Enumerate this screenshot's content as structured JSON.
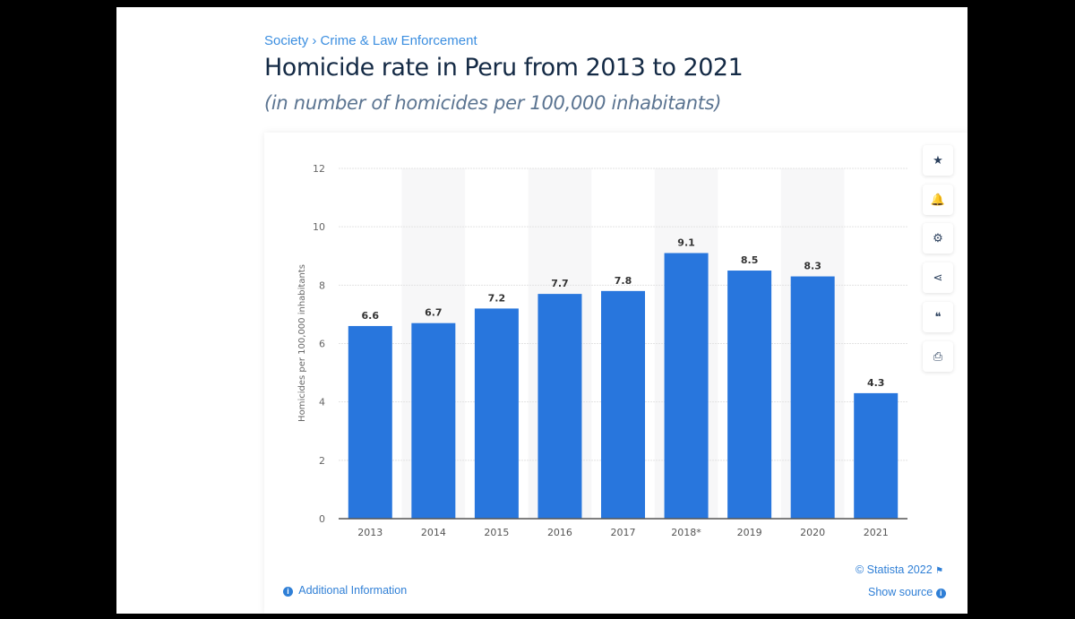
{
  "breadcrumb": {
    "items": [
      "Society",
      "Crime & Law Enforcement"
    ],
    "separator": "›"
  },
  "header": {
    "title": "Homicide rate in Peru from 2013 to 2021",
    "subtitle": "(in number of homicides per 100,000 inhabitants)"
  },
  "tools": [
    {
      "icon": "star-icon",
      "glyph": "★"
    },
    {
      "icon": "bell-icon",
      "glyph": "🔔"
    },
    {
      "icon": "gear-icon",
      "glyph": "⚙"
    },
    {
      "icon": "share-icon",
      "glyph": "⋖"
    },
    {
      "icon": "quote-icon",
      "glyph": "❝"
    },
    {
      "icon": "print-icon",
      "glyph": "⎙"
    }
  ],
  "footer": {
    "copyright": "© Statista 2022",
    "additional_info": "Additional Information",
    "show_source": "Show source"
  },
  "colors": {
    "bar": "#2876dd",
    "title": "#142a45",
    "link": "#2f7fd6"
  },
  "chart_data": {
    "type": "bar",
    "categories": [
      "2013",
      "2014",
      "2015",
      "2016",
      "2017",
      "2018*",
      "2019",
      "2020",
      "2021"
    ],
    "values": [
      6.6,
      6.7,
      7.2,
      7.7,
      7.8,
      9.1,
      8.5,
      8.3,
      4.3
    ],
    "ylabel": "Homicides per 100,000 inhabitants",
    "ylim": [
      0,
      12
    ],
    "yticks": [
      0,
      2,
      4,
      6,
      8,
      10,
      12
    ],
    "grid": true
  }
}
